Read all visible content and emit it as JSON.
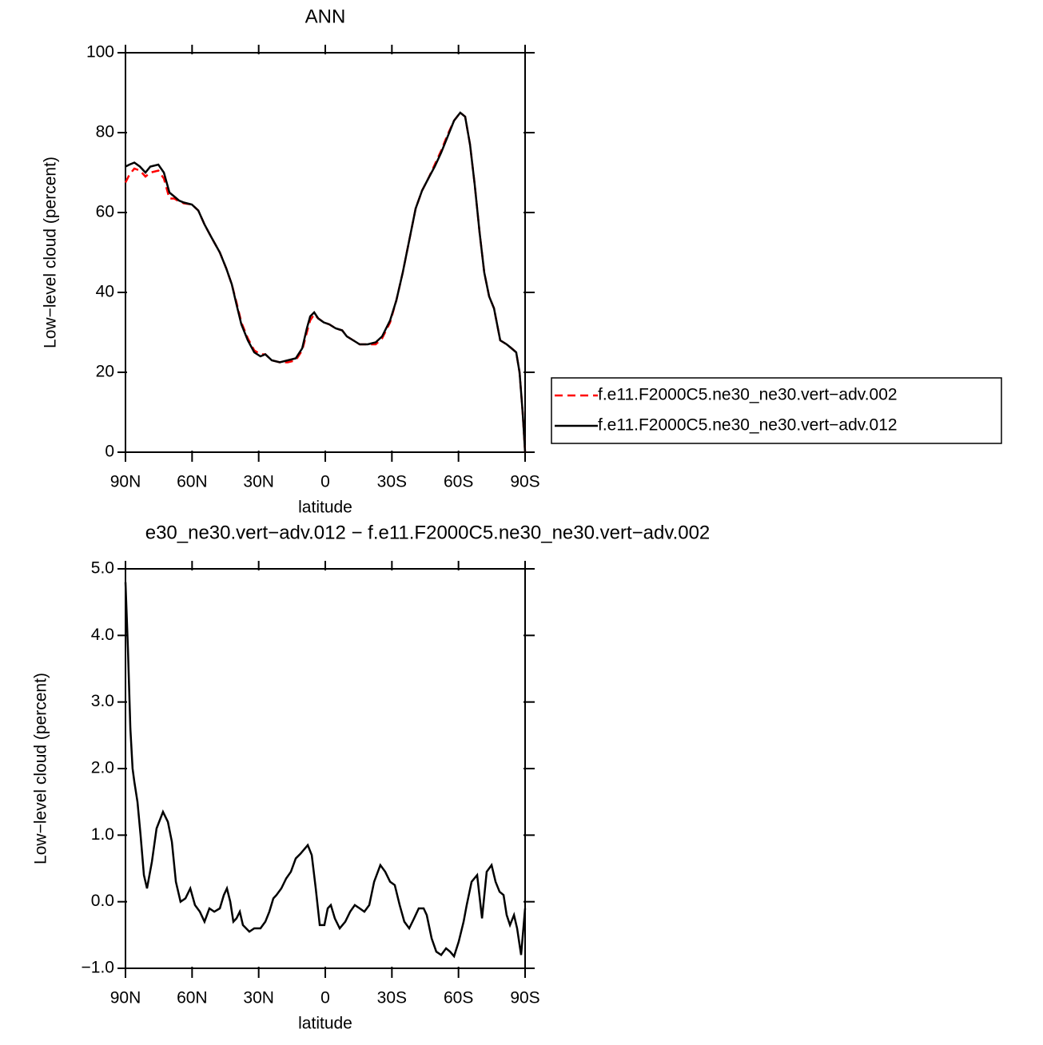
{
  "chart_data": [
    {
      "type": "line",
      "title": "ANN",
      "xlabel": "latitude",
      "ylabel": "Low−level cloud (percent)",
      "xlim": [
        90,
        -90
      ],
      "xticks": [
        {
          "value": 90,
          "label": "90N"
        },
        {
          "value": 60,
          "label": "60N"
        },
        {
          "value": 30,
          "label": "30N"
        },
        0,
        {
          "value": -30,
          "label": "30S"
        },
        {
          "value": -60,
          "label": "60S"
        },
        {
          "value": -90,
          "label": "90S"
        }
      ],
      "ylim": [
        0,
        100
      ],
      "yticks": [
        0,
        20,
        40,
        60,
        80,
        100
      ],
      "legend": "right",
      "x": [
        90,
        88.2,
        86,
        83.5,
        81,
        78.8,
        75.2,
        72.7,
        70.2,
        68,
        65.9,
        63.7,
        60.1,
        57.2,
        54.4,
        51.5,
        47.5,
        44.6,
        42.1,
        40,
        37.8,
        34.9,
        32,
        29.2,
        27,
        24.1,
        20.5,
        16.9,
        13.3,
        10.4,
        8.3,
        6.8,
        5,
        3.2,
        0.7,
        -1.8,
        -4.7,
        -7.6,
        -9.7,
        -12.6,
        -15.5,
        -19.1,
        -22.7,
        -25.6,
        -29.2,
        -32,
        -34.9,
        -37.8,
        -40.7,
        -43.6,
        -46.4,
        -49.3,
        -52.2,
        -55.1,
        -58,
        -60.8,
        -63,
        -65.2,
        -67.3,
        -69.5,
        -71.6,
        -73.8,
        -76,
        -78.8,
        -81.7,
        -83.9,
        -86,
        -87.5,
        -88.9,
        -90
      ],
      "series": [
        {
          "name": "f.e11.F2000C5.ne30_ne30.vert−adv.002",
          "color": "#ff0000",
          "dash": "dashed",
          "values": [
            67.5,
            69.5,
            71,
            70.5,
            69,
            70,
            70.5,
            68.5,
            63.5,
            63.5,
            62.8,
            62.3,
            62,
            60.5,
            57,
            54,
            50,
            46,
            42,
            37.5,
            32.5,
            28.5,
            25.5,
            24.5,
            24.5,
            23,
            22.5,
            22.5,
            23,
            25.5,
            30,
            33,
            34.5,
            33.5,
            32.5,
            32,
            31,
            30.5,
            29,
            28,
            27,
            27,
            27,
            28.5,
            32.5,
            38,
            45,
            53,
            61,
            65.5,
            68.5,
            72,
            75.5,
            79.5,
            83,
            85,
            84,
            77,
            67,
            55,
            45,
            39,
            36,
            28,
            27,
            26,
            25,
            20,
            10,
            0
          ]
        },
        {
          "name": "f.e11.F2000C5.ne30_ne30.vert−adv.012",
          "color": "#000000",
          "dash": "solid",
          "values": [
            71.5,
            72,
            72.5,
            71.5,
            70,
            71.5,
            72,
            70,
            65,
            64,
            63,
            62.5,
            62,
            60.5,
            57,
            54,
            50,
            46,
            42,
            37,
            32,
            28,
            25,
            24,
            24.5,
            23,
            22.5,
            23,
            23.5,
            26,
            31,
            34,
            35,
            33.5,
            32.5,
            32,
            31,
            30.5,
            29,
            28,
            27,
            27,
            27.5,
            29,
            33,
            38,
            45,
            53,
            61,
            65.5,
            68.5,
            71.5,
            75,
            79,
            83,
            85,
            84,
            77,
            67,
            55,
            45,
            39,
            36,
            28,
            27,
            26,
            25,
            20,
            10,
            0
          ]
        }
      ]
    },
    {
      "type": "line",
      "title": "e30_ne30.vert−adv.012 − f.e11.F2000C5.ne30_ne30.vert−adv.002",
      "xlabel": "latitude",
      "ylabel": "Low−level cloud (percent)",
      "xlim": [
        90,
        -90
      ],
      "xticks": [
        {
          "value": 90,
          "label": "90N"
        },
        {
          "value": 60,
          "label": "60N"
        },
        {
          "value": 30,
          "label": "30N"
        },
        0,
        {
          "value": -30,
          "label": "30S"
        },
        {
          "value": -60,
          "label": "60S"
        },
        {
          "value": -90,
          "label": "90S"
        }
      ],
      "ylim": [
        -1,
        5
      ],
      "yticks": [
        {
          "value": -1,
          "label": "−1.0"
        },
        {
          "value": 0,
          "label": "0.0"
        },
        {
          "value": 1,
          "label": "1.0"
        },
        {
          "value": 2,
          "label": "2.0"
        },
        {
          "value": 3,
          "label": "3.0"
        },
        {
          "value": 4,
          "label": "4.0"
        },
        {
          "value": 5,
          "label": "5.0"
        }
      ],
      "x": [
        90,
        88.9,
        87.8,
        86.8,
        86,
        84.6,
        83.2,
        81.7,
        80.3,
        78.1,
        76,
        73.1,
        70.9,
        69.1,
        67.3,
        65.2,
        63,
        60.8,
        58.7,
        56.5,
        54.4,
        52.2,
        50,
        47.5,
        45.7,
        44.3,
        42.8,
        41.4,
        40,
        38.5,
        37.1,
        34.2,
        32,
        29.2,
        27,
        25.2,
        23.4,
        22,
        19.8,
        17.6,
        15.5,
        13.3,
        11.2,
        7.9,
        6.1,
        4.3,
        2.5,
        0.4,
        -1.1,
        -2.5,
        -4.3,
        -6.5,
        -9,
        -11.2,
        -13.3,
        -15.5,
        -17.6,
        -19.8,
        -22,
        -24.8,
        -27,
        -29.2,
        -31.3,
        -33.5,
        -35.6,
        -37.8,
        -40,
        -42.1,
        -44.3,
        -45.7,
        -47.9,
        -50,
        -52.2,
        -54.4,
        -56.2,
        -58,
        -60.1,
        -62.3,
        -63.7,
        -65.9,
        -68.4,
        -70.6,
        -72.7,
        -74.9,
        -76.7,
        -78.5,
        -80.3,
        -81.7,
        -83.2,
        -85,
        -86.4,
        -88.2,
        -90
      ],
      "series": [
        {
          "name": null,
          "color": "#000000",
          "dash": "solid",
          "values": [
            4.8,
            3.8,
            2.6,
            2.0,
            1.8,
            1.5,
            1.0,
            0.4,
            0.2,
            0.6,
            1.1,
            1.35,
            1.2,
            0.9,
            0.3,
            0.0,
            0.05,
            0.2,
            -0.05,
            -0.15,
            -0.3,
            -0.1,
            -0.15,
            -0.1,
            0.1,
            0.2,
            0.0,
            -0.3,
            -0.25,
            -0.15,
            -0.35,
            -0.45,
            -0.4,
            -0.4,
            -0.3,
            -0.15,
            0.05,
            0.1,
            0.2,
            0.35,
            0.45,
            0.65,
            0.72,
            0.85,
            0.7,
            0.2,
            -0.35,
            -0.35,
            -0.1,
            -0.05,
            -0.25,
            -0.4,
            -0.3,
            -0.15,
            -0.05,
            -0.1,
            -0.15,
            -0.05,
            0.3,
            0.55,
            0.45,
            0.3,
            0.25,
            -0.05,
            -0.3,
            -0.4,
            -0.25,
            -0.1,
            -0.1,
            -0.2,
            -0.55,
            -0.75,
            -0.8,
            -0.7,
            -0.75,
            -0.82,
            -0.6,
            -0.3,
            -0.05,
            0.3,
            0.4,
            -0.25,
            0.45,
            0.55,
            0.3,
            0.15,
            0.1,
            -0.2,
            -0.35,
            -0.2,
            -0.4,
            -0.8,
            -0.1
          ]
        }
      ]
    }
  ]
}
